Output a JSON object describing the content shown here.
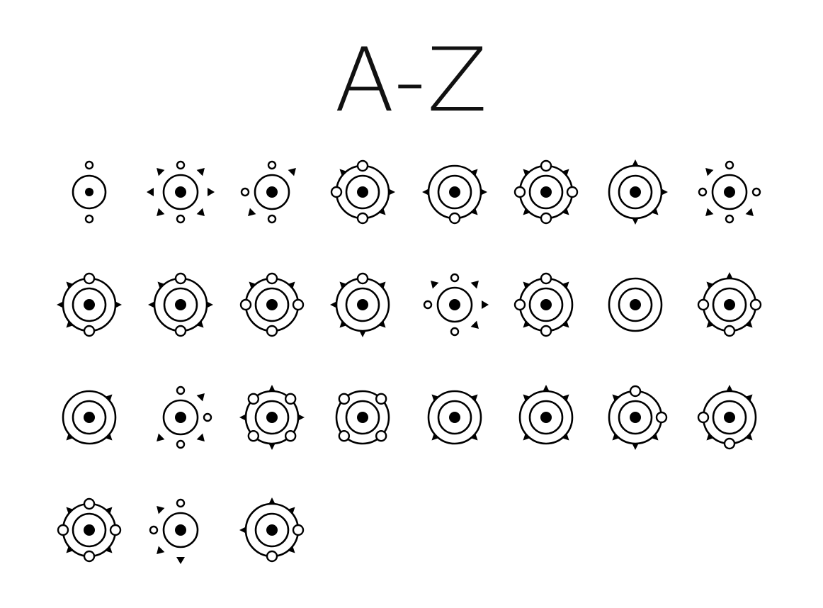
{
  "title": "A-Z",
  "colors": {
    "ink": "#000000",
    "background": "#ffffff"
  },
  "glyphs": [
    {
      "ring": "single-small",
      "dots": [
        "top",
        "bottom"
      ],
      "arrows": []
    },
    {
      "ring": "single",
      "dots": [
        "top",
        "bottom"
      ],
      "arrows": [
        "left",
        "right",
        "top-left",
        "top-right",
        "bottom-left",
        "bottom-right"
      ]
    },
    {
      "ring": "single",
      "dots": [
        "top",
        "left",
        "bottom"
      ],
      "arrows": [
        "top-right",
        "bottom-left"
      ]
    },
    {
      "ring": "double",
      "dots": [
        "top",
        "left",
        "bottom"
      ],
      "arrows": [
        "right",
        "top-left",
        "bottom-right"
      ]
    },
    {
      "ring": "double",
      "dots": [
        "bottom"
      ],
      "arrows": [
        "left",
        "right",
        "top-right",
        "bottom-right"
      ]
    },
    {
      "ring": "double",
      "dots": [
        "top",
        "left",
        "right",
        "bottom"
      ],
      "arrows": [
        "top-left",
        "top-right",
        "bottom-left",
        "bottom-right"
      ]
    },
    {
      "ring": "double",
      "dots": [],
      "arrows": [
        "top",
        "bottom",
        "right",
        "bottom-right"
      ]
    },
    {
      "ring": "single",
      "dots": [
        "top",
        "left",
        "right",
        "bottom"
      ],
      "arrows": [
        "top-left",
        "bottom-left",
        "bottom-right"
      ]
    },
    {
      "ring": "double",
      "dots": [
        "top",
        "bottom"
      ],
      "arrows": [
        "left",
        "right",
        "top-left",
        "bottom-left"
      ]
    },
    {
      "ring": "double",
      "dots": [
        "top",
        "bottom"
      ],
      "arrows": [
        "left",
        "right",
        "top-left",
        "bottom-right"
      ]
    },
    {
      "ring": "double",
      "dots": [
        "top",
        "left",
        "right",
        "bottom"
      ],
      "arrows": [
        "top-left",
        "top-right"
      ]
    },
    {
      "ring": "double",
      "dots": [
        "top"
      ],
      "arrows": [
        "left",
        "bottom",
        "top-left",
        "top-right",
        "bottom-left",
        "bottom-right"
      ]
    },
    {
      "ring": "single",
      "dots": [
        "top",
        "left",
        "bottom"
      ],
      "arrows": [
        "right",
        "top-left",
        "top-right",
        "bottom-right"
      ]
    },
    {
      "ring": "double",
      "dots": [
        "top",
        "left",
        "bottom"
      ],
      "arrows": [
        "top-left",
        "top-right",
        "bottom-left",
        "bottom-right"
      ]
    },
    {
      "ring": "double",
      "dots": [],
      "arrows": []
    },
    {
      "ring": "double",
      "dots": [
        "left",
        "right",
        "bottom"
      ],
      "arrows": [
        "top",
        "top-left",
        "bottom-left",
        "bottom-right"
      ]
    },
    {
      "ring": "double",
      "dots": [],
      "arrows": [
        "top-right",
        "bottom-left",
        "bottom-right"
      ]
    },
    {
      "ring": "single",
      "dots": [
        "top",
        "right",
        "bottom"
      ],
      "arrows": [
        "top-right",
        "bottom-left",
        "bottom-right"
      ]
    },
    {
      "ring": "double",
      "dots": [
        "top-left",
        "top-right",
        "bottom-left",
        "bottom-right"
      ],
      "arrows": [
        "top",
        "bottom",
        "left",
        "right"
      ]
    },
    {
      "ring": "double",
      "dots": [
        "top-left",
        "top-right",
        "bottom-left",
        "bottom-right"
      ],
      "arrows": []
    },
    {
      "ring": "double",
      "dots": [],
      "arrows": [
        "top-left",
        "top-right",
        "bottom-left",
        "bottom-right"
      ]
    },
    {
      "ring": "double",
      "dots": [],
      "arrows": [
        "top",
        "top-left",
        "top-right",
        "bottom-left",
        "bottom-right"
      ]
    },
    {
      "ring": "double",
      "dots": [
        "top",
        "right"
      ],
      "arrows": [
        "top-left",
        "bottom",
        "bottom-left",
        "bottom-right"
      ]
    },
    {
      "ring": "double",
      "dots": [
        "left",
        "bottom"
      ],
      "arrows": [
        "top",
        "top-right",
        "bottom-left",
        "bottom-right"
      ]
    },
    {
      "ring": "double",
      "dots": [
        "top",
        "left",
        "right",
        "bottom"
      ],
      "arrows": [
        "top-left",
        "top-right",
        "bottom-left",
        "bottom-right"
      ]
    },
    {
      "ring": "single",
      "dots": [
        "top",
        "left"
      ],
      "arrows": [
        "bottom",
        "top-left",
        "bottom-left"
      ]
    },
    {
      "ring": "double",
      "dots": [
        "right",
        "bottom"
      ],
      "arrows": [
        "top",
        "left",
        "top-right",
        "bottom-right"
      ]
    }
  ]
}
